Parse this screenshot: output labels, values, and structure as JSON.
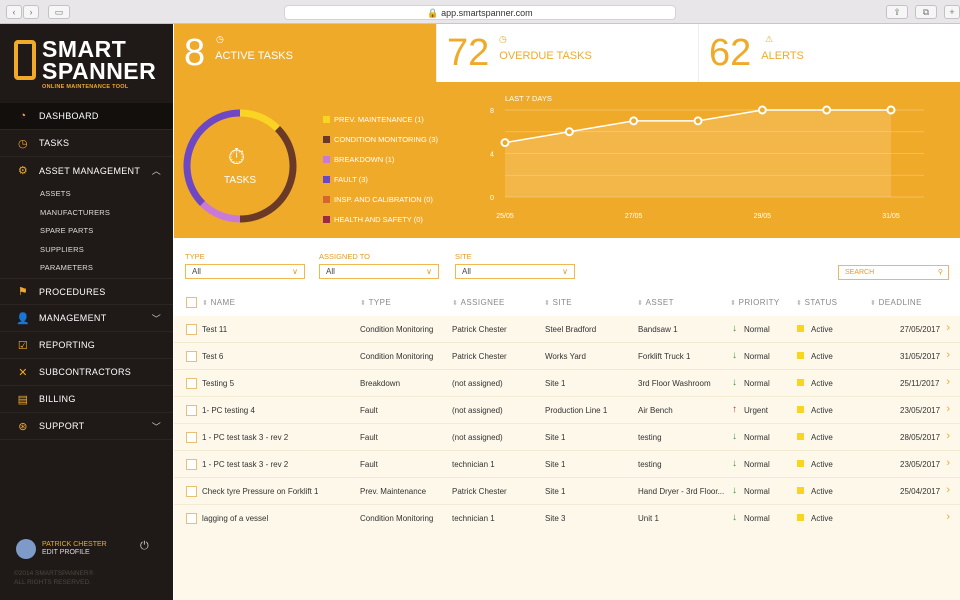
{
  "browser": {
    "url": "app.smartspanner.com"
  },
  "logo": {
    "line1": "SMART",
    "line2": "SPANNER",
    "tagline": "ONLINE MAINTENANCE TOOL"
  },
  "sidebar": {
    "items": [
      {
        "label": "DASHBOARD",
        "icon": "dashboard-icon"
      },
      {
        "label": "TASKS",
        "icon": "stopwatch-icon"
      },
      {
        "label": "ASSET MANAGEMENT",
        "icon": "gear-icon"
      },
      {
        "label": "PROCEDURES",
        "icon": "flag-icon"
      },
      {
        "label": "MANAGEMENT",
        "icon": "user-icon"
      },
      {
        "label": "REPORTING",
        "icon": "clipboard-icon"
      },
      {
        "label": "SUBCONTRACTORS",
        "icon": "tools-icon"
      },
      {
        "label": "BILLING",
        "icon": "money-icon"
      },
      {
        "label": "SUPPORT",
        "icon": "lifebuoy-icon"
      }
    ],
    "sub_items": [
      "ASSETS",
      "MANUFACTURERS",
      "SPARE PARTS",
      "SUPPLIERS",
      "PARAMETERS"
    ],
    "profile": {
      "name": "PATRICK CHESTER",
      "edit": "EDIT PROFILE"
    },
    "copyright": [
      "©2014 SMARTSPANNER®",
      "ALL RIGHTS RESERVED."
    ]
  },
  "stats": [
    {
      "value": "8",
      "label": "ACTIVE TASKS"
    },
    {
      "value": "72",
      "label": "OVERDUE TASKS"
    },
    {
      "value": "62",
      "label": "ALERTS"
    }
  ],
  "donut": {
    "center_label": "TASKS",
    "legend": [
      {
        "label": "PREV. MAINTENANCE (1)",
        "value": 1,
        "color": "#f9d423"
      },
      {
        "label": "CONDITION MONITORING (3)",
        "value": 3,
        "color": "#6b3a26"
      },
      {
        "label": "BREAKDOWN (1)",
        "value": 1,
        "color": "#c97ad6"
      },
      {
        "label": "FAULT (3)",
        "value": 3,
        "color": "#6e47c4"
      },
      {
        "label": "INSP. AND CALIBRATION (0)",
        "value": 0,
        "color": "#d2692a"
      },
      {
        "label": "HEALTH AND SAFETY (0)",
        "value": 0,
        "color": "#9b2a45"
      }
    ]
  },
  "chart_data": {
    "type": "area",
    "title": "LAST 7 DAYS",
    "x": [
      "25/05",
      "26/05",
      "27/05",
      "28/05",
      "29/05",
      "30/05",
      "31/05"
    ],
    "values": [
      5,
      6,
      7,
      7,
      8,
      8,
      8
    ],
    "xticks": [
      "25/05",
      "27/05",
      "29/05",
      "31/05"
    ],
    "yticks": [
      "0",
      "4",
      "8"
    ],
    "ylim": [
      0,
      8
    ]
  },
  "filters": {
    "type": {
      "label": "TYPE",
      "value": "All"
    },
    "assigned": {
      "label": "ASSIGNED TO",
      "value": "All"
    },
    "site": {
      "label": "SITE",
      "value": "All"
    },
    "search_placeholder": "SEARCH"
  },
  "table": {
    "headers": [
      "NAME",
      "TYPE",
      "ASSIGNEE",
      "SITE",
      "ASSET",
      "PRIORITY",
      "STATUS",
      "DEADLINE"
    ],
    "rows": [
      [
        "Test 11",
        "Condition Monitoring",
        "Patrick Chester",
        "Steel Bradford",
        "Bandsaw 1",
        "Normal",
        "Active",
        "27/05/2017"
      ],
      [
        "Test 6",
        "Condition Monitoring",
        "Patrick Chester",
        "Works Yard",
        "Forklift Truck 1",
        "Normal",
        "Active",
        "31/05/2017"
      ],
      [
        "Testing 5",
        "Breakdown",
        "(not assigned)",
        "Site 1",
        "3rd Floor Washroom",
        "Normal",
        "Active",
        "25/11/2017"
      ],
      [
        "1- PC testing 4",
        "Fault",
        "(not assigned)",
        "Production Line 1",
        "Air Bench",
        "Urgent",
        "Active",
        "23/05/2017"
      ],
      [
        "1 - PC test task 3 - rev 2",
        "Fault",
        "(not assigned)",
        "Site 1",
        "testing",
        "Normal",
        "Active",
        "28/05/2017"
      ],
      [
        "1 - PC test task 3 - rev 2",
        "Fault",
        "technician 1",
        "Site 1",
        "testing",
        "Normal",
        "Active",
        "23/05/2017"
      ],
      [
        "Check tyre Pressure on Forklift 1",
        "Prev. Maintenance",
        "Patrick Chester",
        "Site 1",
        "Hand Dryer - 3rd Floor...",
        "Normal",
        "Active",
        "25/04/2017"
      ],
      [
        "lagging of a vessel",
        "Condition Monitoring",
        "technician 1",
        "Site 3",
        "Unit 1",
        "Normal",
        "Active",
        ""
      ]
    ]
  }
}
